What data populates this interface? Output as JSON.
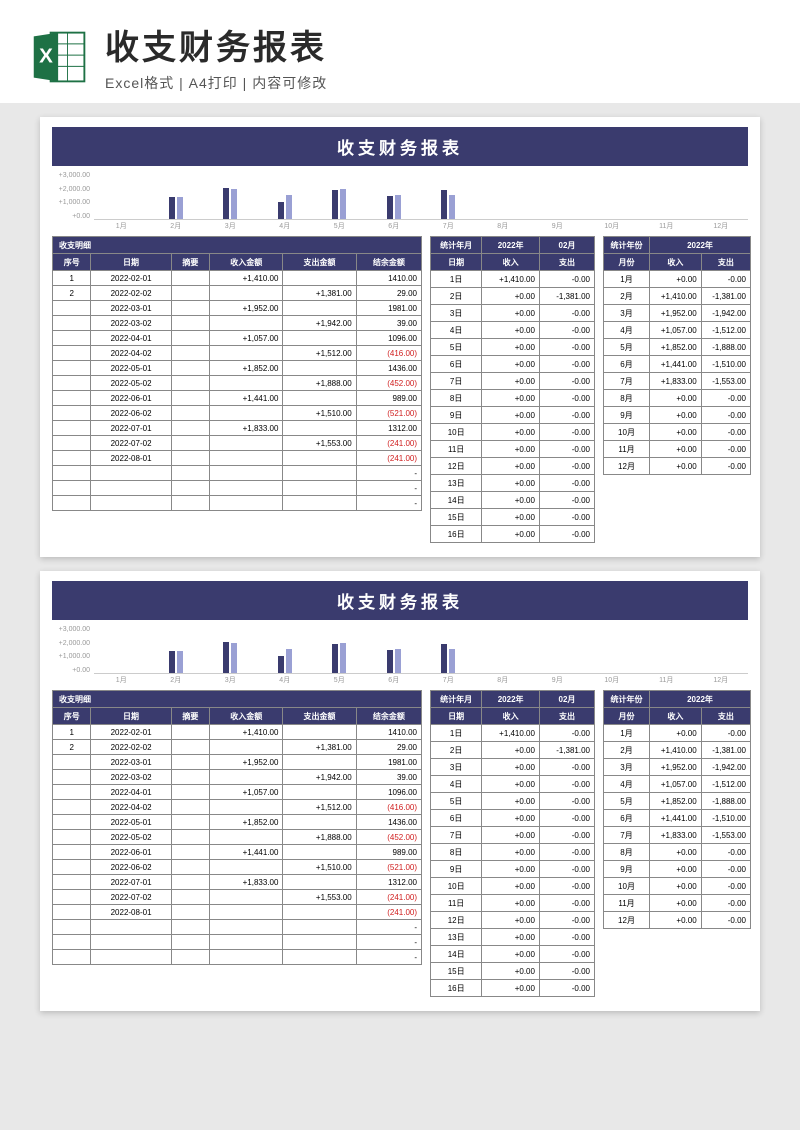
{
  "header": {
    "title": "收支财务报表",
    "subtitle": "Excel格式 | A4打印 | 内容可修改"
  },
  "sheet": {
    "title": "收支财务报表",
    "detail_label": "收支明细",
    "detail_headers": [
      "序号",
      "日期",
      "摘要",
      "收入金额",
      "支出金额",
      "结余金额"
    ],
    "detail_rows": [
      {
        "no": "1",
        "date": "2022-02-01",
        "sum": "",
        "in": "+1,410.00",
        "out": "",
        "bal": "1410.00",
        "neg": false
      },
      {
        "no": "2",
        "date": "2022-02-02",
        "sum": "",
        "in": "",
        "out": "+1,381.00",
        "bal": "29.00",
        "neg": false
      },
      {
        "no": "",
        "date": "2022-03-01",
        "sum": "",
        "in": "+1,952.00",
        "out": "",
        "bal": "1981.00",
        "neg": false
      },
      {
        "no": "",
        "date": "2022-03-02",
        "sum": "",
        "in": "",
        "out": "+1,942.00",
        "bal": "39.00",
        "neg": false
      },
      {
        "no": "",
        "date": "2022-04-01",
        "sum": "",
        "in": "+1,057.00",
        "out": "",
        "bal": "1096.00",
        "neg": false
      },
      {
        "no": "",
        "date": "2022-04-02",
        "sum": "",
        "in": "",
        "out": "+1,512.00",
        "bal": "(416.00)",
        "neg": true
      },
      {
        "no": "",
        "date": "2022-05-01",
        "sum": "",
        "in": "+1,852.00",
        "out": "",
        "bal": "1436.00",
        "neg": false
      },
      {
        "no": "",
        "date": "2022-05-02",
        "sum": "",
        "in": "",
        "out": "+1,888.00",
        "bal": "(452.00)",
        "neg": true
      },
      {
        "no": "",
        "date": "2022-06-01",
        "sum": "",
        "in": "+1,441.00",
        "out": "",
        "bal": "989.00",
        "neg": false
      },
      {
        "no": "",
        "date": "2022-06-02",
        "sum": "",
        "in": "",
        "out": "+1,510.00",
        "bal": "(521.00)",
        "neg": true
      },
      {
        "no": "",
        "date": "2022-07-01",
        "sum": "",
        "in": "+1,833.00",
        "out": "",
        "bal": "1312.00",
        "neg": false
      },
      {
        "no": "",
        "date": "2022-07-02",
        "sum": "",
        "in": "",
        "out": "+1,553.00",
        "bal": "(241.00)",
        "neg": true
      },
      {
        "no": "",
        "date": "2022-08-01",
        "sum": "",
        "in": "",
        "out": "",
        "bal": "(241.00)",
        "neg": true
      },
      {
        "no": "",
        "date": "",
        "sum": "",
        "in": "",
        "out": "",
        "bal": "-",
        "neg": false
      },
      {
        "no": "",
        "date": "",
        "sum": "",
        "in": "",
        "out": "",
        "bal": "-",
        "neg": false
      },
      {
        "no": "",
        "date": "",
        "sum": "",
        "in": "",
        "out": "",
        "bal": "-",
        "neg": false
      }
    ],
    "daily_header_top": [
      "统计年月",
      "2022年",
      "02月"
    ],
    "daily_headers": [
      "日期",
      "收入",
      "支出"
    ],
    "daily_rows": [
      {
        "d": "1日",
        "in": "+1,410.00",
        "out": "-0.00"
      },
      {
        "d": "2日",
        "in": "+0.00",
        "out": "-1,381.00"
      },
      {
        "d": "3日",
        "in": "+0.00",
        "out": "-0.00"
      },
      {
        "d": "4日",
        "in": "+0.00",
        "out": "-0.00"
      },
      {
        "d": "5日",
        "in": "+0.00",
        "out": "-0.00"
      },
      {
        "d": "6日",
        "in": "+0.00",
        "out": "-0.00"
      },
      {
        "d": "7日",
        "in": "+0.00",
        "out": "-0.00"
      },
      {
        "d": "8日",
        "in": "+0.00",
        "out": "-0.00"
      },
      {
        "d": "9日",
        "in": "+0.00",
        "out": "-0.00"
      },
      {
        "d": "10日",
        "in": "+0.00",
        "out": "-0.00"
      },
      {
        "d": "11日",
        "in": "+0.00",
        "out": "-0.00"
      },
      {
        "d": "12日",
        "in": "+0.00",
        "out": "-0.00"
      },
      {
        "d": "13日",
        "in": "+0.00",
        "out": "-0.00"
      },
      {
        "d": "14日",
        "in": "+0.00",
        "out": "-0.00"
      },
      {
        "d": "15日",
        "in": "+0.00",
        "out": "-0.00"
      },
      {
        "d": "16日",
        "in": "+0.00",
        "out": "-0.00"
      }
    ],
    "yearly_header_top": [
      "统计年份",
      "2022年"
    ],
    "yearly_headers": [
      "月份",
      "收入",
      "支出"
    ],
    "yearly_rows": [
      {
        "m": "1月",
        "in": "+0.00",
        "out": "-0.00"
      },
      {
        "m": "2月",
        "in": "+1,410.00",
        "out": "-1,381.00"
      },
      {
        "m": "3月",
        "in": "+1,952.00",
        "out": "-1,942.00"
      },
      {
        "m": "4月",
        "in": "+1,057.00",
        "out": "-1,512.00"
      },
      {
        "m": "5月",
        "in": "+1,852.00",
        "out": "-1,888.00"
      },
      {
        "m": "6月",
        "in": "+1,441.00",
        "out": "-1,510.00"
      },
      {
        "m": "7月",
        "in": "+1,833.00",
        "out": "-1,553.00"
      },
      {
        "m": "8月",
        "in": "+0.00",
        "out": "-0.00"
      },
      {
        "m": "9月",
        "in": "+0.00",
        "out": "-0.00"
      },
      {
        "m": "10月",
        "in": "+0.00",
        "out": "-0.00"
      },
      {
        "m": "11月",
        "in": "+0.00",
        "out": "-0.00"
      },
      {
        "m": "12月",
        "in": "+0.00",
        "out": "-0.00"
      }
    ],
    "chart": {
      "ylabels": [
        "+3,000.00",
        "+2,000.00",
        "+1,000.00",
        "+0.00"
      ],
      "months": [
        "1月",
        "2月",
        "3月",
        "4月",
        "5月",
        "6月",
        "7月",
        "8月",
        "9月",
        "10月",
        "11月",
        "12月"
      ],
      "in": [
        0,
        1410,
        1952,
        1057,
        1852,
        1441,
        1833,
        0,
        0,
        0,
        0,
        0
      ],
      "out": [
        0,
        1381,
        1942,
        1512,
        1888,
        1510,
        1553,
        0,
        0,
        0,
        0,
        0
      ],
      "ymax": 3000,
      "bar_in_color": "#3a3b6e",
      "bar_out_color": "#9aa0d4"
    }
  }
}
